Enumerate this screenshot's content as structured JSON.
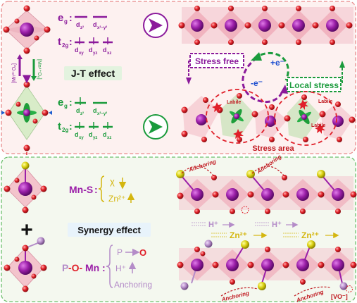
{
  "colors": {
    "purple": "#8b1a9b",
    "green": "#1a9b3c",
    "red": "#e0202a",
    "yellow": "#d9d21a",
    "orange": "#d4a017",
    "pink_label": "#e05a7a",
    "lavender": "#b48cc8",
    "panel_top_border": "#e88a8a",
    "panel_top_bg": "#fdf0ef",
    "panel_bottom_border": "#6cbf6c",
    "panel_bottom_bg": "#f3f8ef",
    "octa_fill": "#f4c7cf",
    "badge_bg": "#e3f3df",
    "badge2_bg": "#e8f3fb"
  },
  "top": {
    "eg_label": "e",
    "eg_sub": "g",
    "eg_orbitals": [
      "d",
      "d"
    ],
    "eg_orbital_subs": [
      "z²",
      "x²−y²"
    ],
    "t2g_label": "t",
    "t2g_sub": "2g",
    "t2g_orbitals": [
      "d",
      "d",
      "d"
    ],
    "t2g_orbital_subs": [
      "xy",
      "yz",
      "xz"
    ],
    "colon": ":",
    "mn_o_long": "[Mn³⁺O₆]",
    "mn_o_short": "[Mn⁴⁺O₆]",
    "jt_effect": "J-T effect",
    "stress_free": "Stress free",
    "local_stress": "Local stress",
    "plus_e": "+e⁻",
    "minus_e": "-e⁻",
    "labile": "Labile",
    "stress_area": "Stress area"
  },
  "bottom": {
    "mn_s": "Mn-S",
    "mn_s_colon": ":",
    "chi": "χ",
    "zn": "Zn²⁺",
    "plus_sign": "+",
    "synergy": "Synergy effect",
    "p_o_mn_p": "P",
    "p_o_mn_o": "-O-",
    "p_o_mn_mn": "Mn",
    "p_o_mn_colon": ":",
    "p_arrow": "P",
    "o_target": "O",
    "h_plus": "H⁺",
    "anchoring": "Anchoring",
    "h_plus_flow": "H⁺",
    "zn_flow": "Zn²⁺",
    "vacancy": "[VO⁻]"
  }
}
